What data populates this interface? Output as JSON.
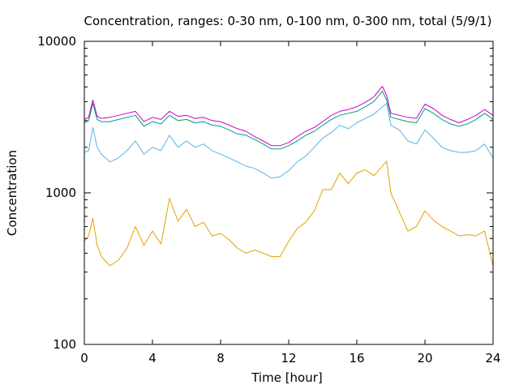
{
  "chart_data": {
    "type": "line",
    "title": "Concentration, ranges: 0-30 nm, 0-100 nm, 0-300 nm, total (5/9/1)",
    "xlabel": "Time [hour]",
    "ylabel": "Concentration",
    "xlim": [
      0,
      24
    ],
    "ylim": [
      100,
      10000
    ],
    "yscale": "log",
    "grid": false,
    "x_ticks": [
      0,
      4,
      8,
      12,
      16,
      20,
      24
    ],
    "x_tick_labels": [
      "0",
      "4",
      "8",
      "12",
      "16",
      "20",
      "24"
    ],
    "y_ticks": [
      100,
      1000,
      10000
    ],
    "y_tick_labels": [
      "100",
      "1000",
      "10000"
    ],
    "x": [
      0,
      0.25,
      0.5,
      0.75,
      1,
      1.5,
      2,
      2.5,
      3,
      3.5,
      4,
      4.5,
      5,
      5.5,
      6,
      6.5,
      7,
      7.5,
      8,
      8.5,
      9,
      9.5,
      10,
      10.5,
      11,
      11.5,
      12,
      12.5,
      13,
      13.5,
      14,
      14.5,
      15,
      15.5,
      16,
      16.5,
      17,
      17.5,
      17.75,
      18,
      18.5,
      19,
      19.5,
      20,
      20.5,
      21,
      21.5,
      22,
      22.5,
      23,
      23.5,
      24
    ],
    "series": [
      {
        "color": "#e69f00",
        "values": [
          480,
          520,
          680,
          450,
          380,
          330,
          360,
          430,
          600,
          450,
          560,
          460,
          920,
          650,
          780,
          600,
          640,
          520,
          540,
          490,
          430,
          400,
          420,
          400,
          380,
          380,
          480,
          580,
          640,
          760,
          1050,
          1050,
          1350,
          1150,
          1350,
          1420,
          1300,
          1500,
          1620,
          1000,
          750,
          560,
          600,
          760,
          660,
          600,
          560,
          520,
          530,
          520,
          560,
          330
        ]
      },
      {
        "color": "#56b4e9",
        "values": [
          1850,
          1900,
          2700,
          2000,
          1800,
          1600,
          1700,
          1900,
          2200,
          1800,
          2000,
          1900,
          2400,
          2000,
          2200,
          2000,
          2100,
          1900,
          1800,
          1700,
          1600,
          1500,
          1450,
          1350,
          1250,
          1280,
          1400,
          1600,
          1750,
          2000,
          2300,
          2500,
          2800,
          2650,
          2900,
          3100,
          3300,
          3700,
          3900,
          2800,
          2600,
          2200,
          2100,
          2600,
          2300,
          2000,
          1900,
          1850,
          1850,
          1900,
          2100,
          1700
        ]
      },
      {
        "color": "#009e73",
        "values": [
          2900,
          3000,
          3900,
          3050,
          2950,
          2950,
          3050,
          3150,
          3250,
          2750,
          2950,
          2850,
          3250,
          3000,
          3050,
          2900,
          2950,
          2800,
          2750,
          2600,
          2450,
          2400,
          2250,
          2100,
          1950,
          1950,
          2050,
          2200,
          2400,
          2550,
          2800,
          3050,
          3250,
          3350,
          3450,
          3700,
          4000,
          4700,
          4100,
          3150,
          3050,
          2950,
          2900,
          3600,
          3350,
          3050,
          2850,
          2750,
          2850,
          3050,
          3350,
          3050
        ]
      },
      {
        "color": "#cc00cc",
        "values": [
          3050,
          3150,
          4100,
          3200,
          3100,
          3150,
          3250,
          3350,
          3450,
          2950,
          3150,
          3050,
          3450,
          3200,
          3250,
          3100,
          3150,
          3000,
          2950,
          2800,
          2650,
          2550,
          2350,
          2200,
          2050,
          2050,
          2150,
          2350,
          2550,
          2700,
          2950,
          3250,
          3450,
          3550,
          3700,
          3950,
          4300,
          5050,
          4400,
          3350,
          3250,
          3150,
          3100,
          3850,
          3600,
          3250,
          3050,
          2900,
          3050,
          3250,
          3550,
          3250
        ]
      }
    ]
  }
}
